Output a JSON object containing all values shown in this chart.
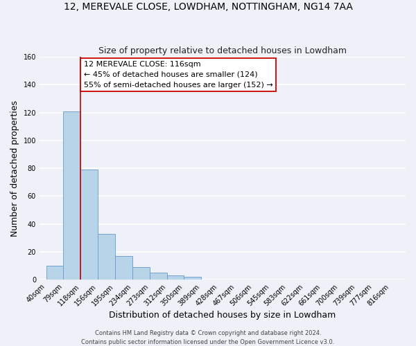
{
  "title1": "12, MEREVALE CLOSE, LOWDHAM, NOTTINGHAM, NG14 7AA",
  "title2": "Size of property relative to detached houses in Lowdham",
  "xlabel": "Distribution of detached houses by size in Lowdham",
  "ylabel": "Number of detached properties",
  "bar_left_edges": [
    40,
    79,
    118,
    156,
    195,
    234,
    273,
    312,
    350,
    389,
    428,
    467,
    506,
    545,
    583,
    622,
    661,
    700,
    739,
    777
  ],
  "bar_heights": [
    10,
    121,
    79,
    33,
    17,
    9,
    5,
    3,
    2,
    0,
    0,
    0,
    0,
    0,
    0,
    0,
    0,
    0,
    0,
    0
  ],
  "bar_widths": [
    39,
    39,
    38,
    39,
    39,
    39,
    39,
    38,
    39,
    39,
    39,
    39,
    39,
    38,
    39,
    39,
    39,
    39,
    38,
    39
  ],
  "xtick_labels": [
    "40sqm",
    "79sqm",
    "118sqm",
    "156sqm",
    "195sqm",
    "234sqm",
    "273sqm",
    "312sqm",
    "350sqm",
    "389sqm",
    "428sqm",
    "467sqm",
    "506sqm",
    "545sqm",
    "583sqm",
    "622sqm",
    "661sqm",
    "700sqm",
    "739sqm",
    "777sqm",
    "816sqm"
  ],
  "xtick_positions": [
    40,
    79,
    118,
    156,
    195,
    234,
    273,
    312,
    350,
    389,
    428,
    467,
    506,
    545,
    583,
    622,
    661,
    700,
    739,
    777,
    816
  ],
  "ytick_positions": [
    0,
    20,
    40,
    60,
    80,
    100,
    120,
    140,
    160
  ],
  "ylim": [
    0,
    160
  ],
  "xlim": [
    25,
    850
  ],
  "bar_color": "#b8d4e8",
  "bar_edgecolor": "#6699cc",
  "vline_x": 118,
  "vline_color": "#cc0000",
  "annotation_title": "12 MEREVALE CLOSE: 116sqm",
  "annotation_line2": "← 45% of detached houses are smaller (124)",
  "annotation_line3": "55% of semi-detached houses are larger (152) →",
  "annotation_box_edgecolor": "#cc0000",
  "annotation_box_facecolor": "#ffffff",
  "footer1": "Contains HM Land Registry data © Crown copyright and database right 2024.",
  "footer2": "Contains public sector information licensed under the Open Government Licence v3.0.",
  "background_color": "#eef2f8",
  "grid_color": "#ffffff",
  "title1_fontsize": 10,
  "title2_fontsize": 9,
  "axis_label_fontsize": 9,
  "tick_fontsize": 7,
  "footer_fontsize": 6,
  "annotation_fontsize": 8
}
